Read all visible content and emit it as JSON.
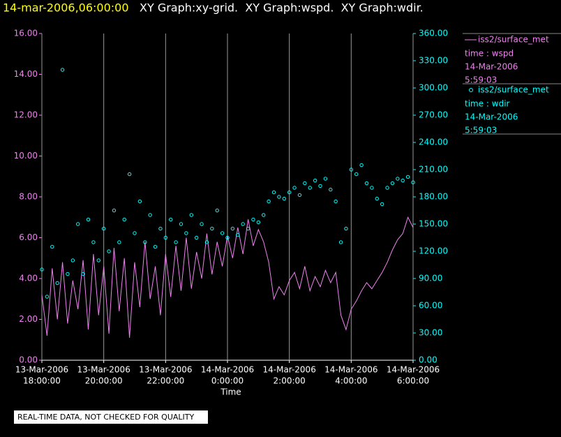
{
  "chart_data": {
    "type": "xy",
    "title": "14-mar-2006,06:00:00",
    "subtitle": "XY Graph:xy-grid.  XY Graph:wspd.  XY Graph:wdir.",
    "x_label": "Time",
    "note": "REAL-TIME DATA, NOT CHECKED FOR QUALITY",
    "grid": true,
    "x": [
      "2006-03-13 18:00",
      "2006-03-13 18:10",
      "2006-03-13 18:20",
      "2006-03-13 18:30",
      "2006-03-13 18:40",
      "2006-03-13 18:50",
      "2006-03-13 19:00",
      "2006-03-13 19:10",
      "2006-03-13 19:20",
      "2006-03-13 19:30",
      "2006-03-13 19:40",
      "2006-03-13 19:50",
      "2006-03-13 20:00",
      "2006-03-13 20:10",
      "2006-03-13 20:20",
      "2006-03-13 20:30",
      "2006-03-13 20:40",
      "2006-03-13 20:50",
      "2006-03-13 21:00",
      "2006-03-13 21:10",
      "2006-03-13 21:20",
      "2006-03-13 21:30",
      "2006-03-13 21:40",
      "2006-03-13 21:50",
      "2006-03-13 22:00",
      "2006-03-13 22:10",
      "2006-03-13 22:20",
      "2006-03-13 22:30",
      "2006-03-13 22:40",
      "2006-03-13 22:50",
      "2006-03-13 23:00",
      "2006-03-13 23:10",
      "2006-03-13 23:20",
      "2006-03-13 23:30",
      "2006-03-13 23:40",
      "2006-03-13 23:50",
      "2006-03-14 00:00",
      "2006-03-14 00:10",
      "2006-03-14 00:20",
      "2006-03-14 00:30",
      "2006-03-14 00:40",
      "2006-03-14 00:50",
      "2006-03-14 01:00",
      "2006-03-14 01:10",
      "2006-03-14 01:20",
      "2006-03-14 01:30",
      "2006-03-14 01:40",
      "2006-03-14 01:50",
      "2006-03-14 02:00",
      "2006-03-14 02:10",
      "2006-03-14 02:20",
      "2006-03-14 02:30",
      "2006-03-14 02:40",
      "2006-03-14 02:50",
      "2006-03-14 03:00",
      "2006-03-14 03:10",
      "2006-03-14 03:20",
      "2006-03-14 03:30",
      "2006-03-14 03:40",
      "2006-03-14 03:50",
      "2006-03-14 04:00",
      "2006-03-14 04:10",
      "2006-03-14 04:20",
      "2006-03-14 04:30",
      "2006-03-14 04:40",
      "2006-03-14 04:50",
      "2006-03-14 05:00",
      "2006-03-14 05:10",
      "2006-03-14 05:20",
      "2006-03-14 05:30",
      "2006-03-14 05:40",
      "2006-03-14 05:50",
      "2006-03-14 06:00"
    ],
    "xlim": [
      "2006-03-13 18:00",
      "2006-03-14 06:00"
    ],
    "xticks": [
      {
        "value": "2006-03-13 18:00",
        "label": [
          "13-Mar-2006",
          "18:00:00"
        ]
      },
      {
        "value": "2006-03-13 20:00",
        "label": [
          "13-Mar-2006",
          "20:00:00"
        ]
      },
      {
        "value": "2006-03-13 22:00",
        "label": [
          "13-Mar-2006",
          "22:00:00"
        ]
      },
      {
        "value": "2006-03-14 00:00",
        "label": [
          "14-Mar-2006",
          "0:00:00"
        ]
      },
      {
        "value": "2006-03-14 02:00",
        "label": [
          "14-Mar-2006",
          "2:00:00"
        ]
      },
      {
        "value": "2006-03-14 04:00",
        "label": [
          "14-Mar-2006",
          "4:00:00"
        ]
      },
      {
        "value": "2006-03-14 06:00",
        "label": [
          "14-Mar-2006",
          "6:00:00"
        ]
      }
    ],
    "ylim": [
      0,
      16
    ],
    "yticks": [
      {
        "value": 0,
        "label": "0.00"
      },
      {
        "value": 2,
        "label": "2.00"
      },
      {
        "value": 4,
        "label": "4.00"
      },
      {
        "value": 6,
        "label": "6.00"
      },
      {
        "value": 8,
        "label": "8.00"
      },
      {
        "value": 10,
        "label": "10.00"
      },
      {
        "value": 12,
        "label": "12.00"
      },
      {
        "value": 14,
        "label": "14.00"
      },
      {
        "value": 16,
        "label": "16.00"
      }
    ],
    "y2lim": [
      0,
      360
    ],
    "y2ticks": [
      {
        "value": 0,
        "label": "0.00"
      },
      {
        "value": 30,
        "label": "30.00"
      },
      {
        "value": 60,
        "label": "60.00"
      },
      {
        "value": 90,
        "label": "90.00"
      },
      {
        "value": 120,
        "label": "120.00"
      },
      {
        "value": 150,
        "label": "150.00"
      },
      {
        "value": 180,
        "label": "180.00"
      },
      {
        "value": 210,
        "label": "210.00"
      },
      {
        "value": 240,
        "label": "240.00"
      },
      {
        "value": 270,
        "label": "270.00"
      },
      {
        "value": 300,
        "label": "300.00"
      },
      {
        "value": 330,
        "label": "330.00"
      },
      {
        "value": 360,
        "label": "360.00"
      }
    ],
    "series": [
      {
        "name": "iss2/surface_met",
        "legend_lines": [
          "time : wspd",
          "14-Mar-2006",
          "5:59:03"
        ],
        "type": "line",
        "color": "#ee82ee",
        "axis": "y",
        "values": [
          3.2,
          1.2,
          4.5,
          2.0,
          4.8,
          1.8,
          3.9,
          2.5,
          4.9,
          1.5,
          5.2,
          2.2,
          4.6,
          1.3,
          5.5,
          2.4,
          5.0,
          1.1,
          4.8,
          2.6,
          5.8,
          3.0,
          4.6,
          2.2,
          5.2,
          3.1,
          5.6,
          3.4,
          6.0,
          3.5,
          5.3,
          4.0,
          6.2,
          4.2,
          5.8,
          4.6,
          6.1,
          5.0,
          6.5,
          5.2,
          6.9,
          5.6,
          6.4,
          5.8,
          4.8,
          3.0,
          3.6,
          3.2,
          3.9,
          4.3,
          3.5,
          4.6,
          3.4,
          4.1,
          3.6,
          4.4,
          3.8,
          4.3,
          2.2,
          1.5,
          2.5,
          2.9,
          3.4,
          3.8,
          3.5,
          3.9,
          4.3,
          4.8,
          5.4,
          5.9,
          6.2,
          7.0,
          6.5
        ]
      },
      {
        "name": "iss2/surface_met",
        "legend_lines": [
          "time : wdir",
          "14-Mar-2006",
          "5:59:03"
        ],
        "type": "scatter",
        "color": "#00ffff",
        "axis": "y2",
        "values": [
          100,
          70,
          125,
          85,
          320,
          95,
          110,
          150,
          95,
          155,
          130,
          110,
          145,
          120,
          165,
          130,
          155,
          205,
          140,
          175,
          130,
          160,
          125,
          145,
          135,
          155,
          130,
          150,
          140,
          160,
          135,
          150,
          130,
          145,
          165,
          140,
          135,
          145,
          138,
          150,
          145,
          155,
          152,
          160,
          175,
          185,
          180,
          178,
          185,
          190,
          182,
          195,
          190,
          198,
          192,
          200,
          188,
          175,
          130,
          145,
          210,
          205,
          215,
          195,
          190,
          178,
          172,
          190,
          195,
          200,
          198,
          202,
          196
        ]
      }
    ]
  }
}
